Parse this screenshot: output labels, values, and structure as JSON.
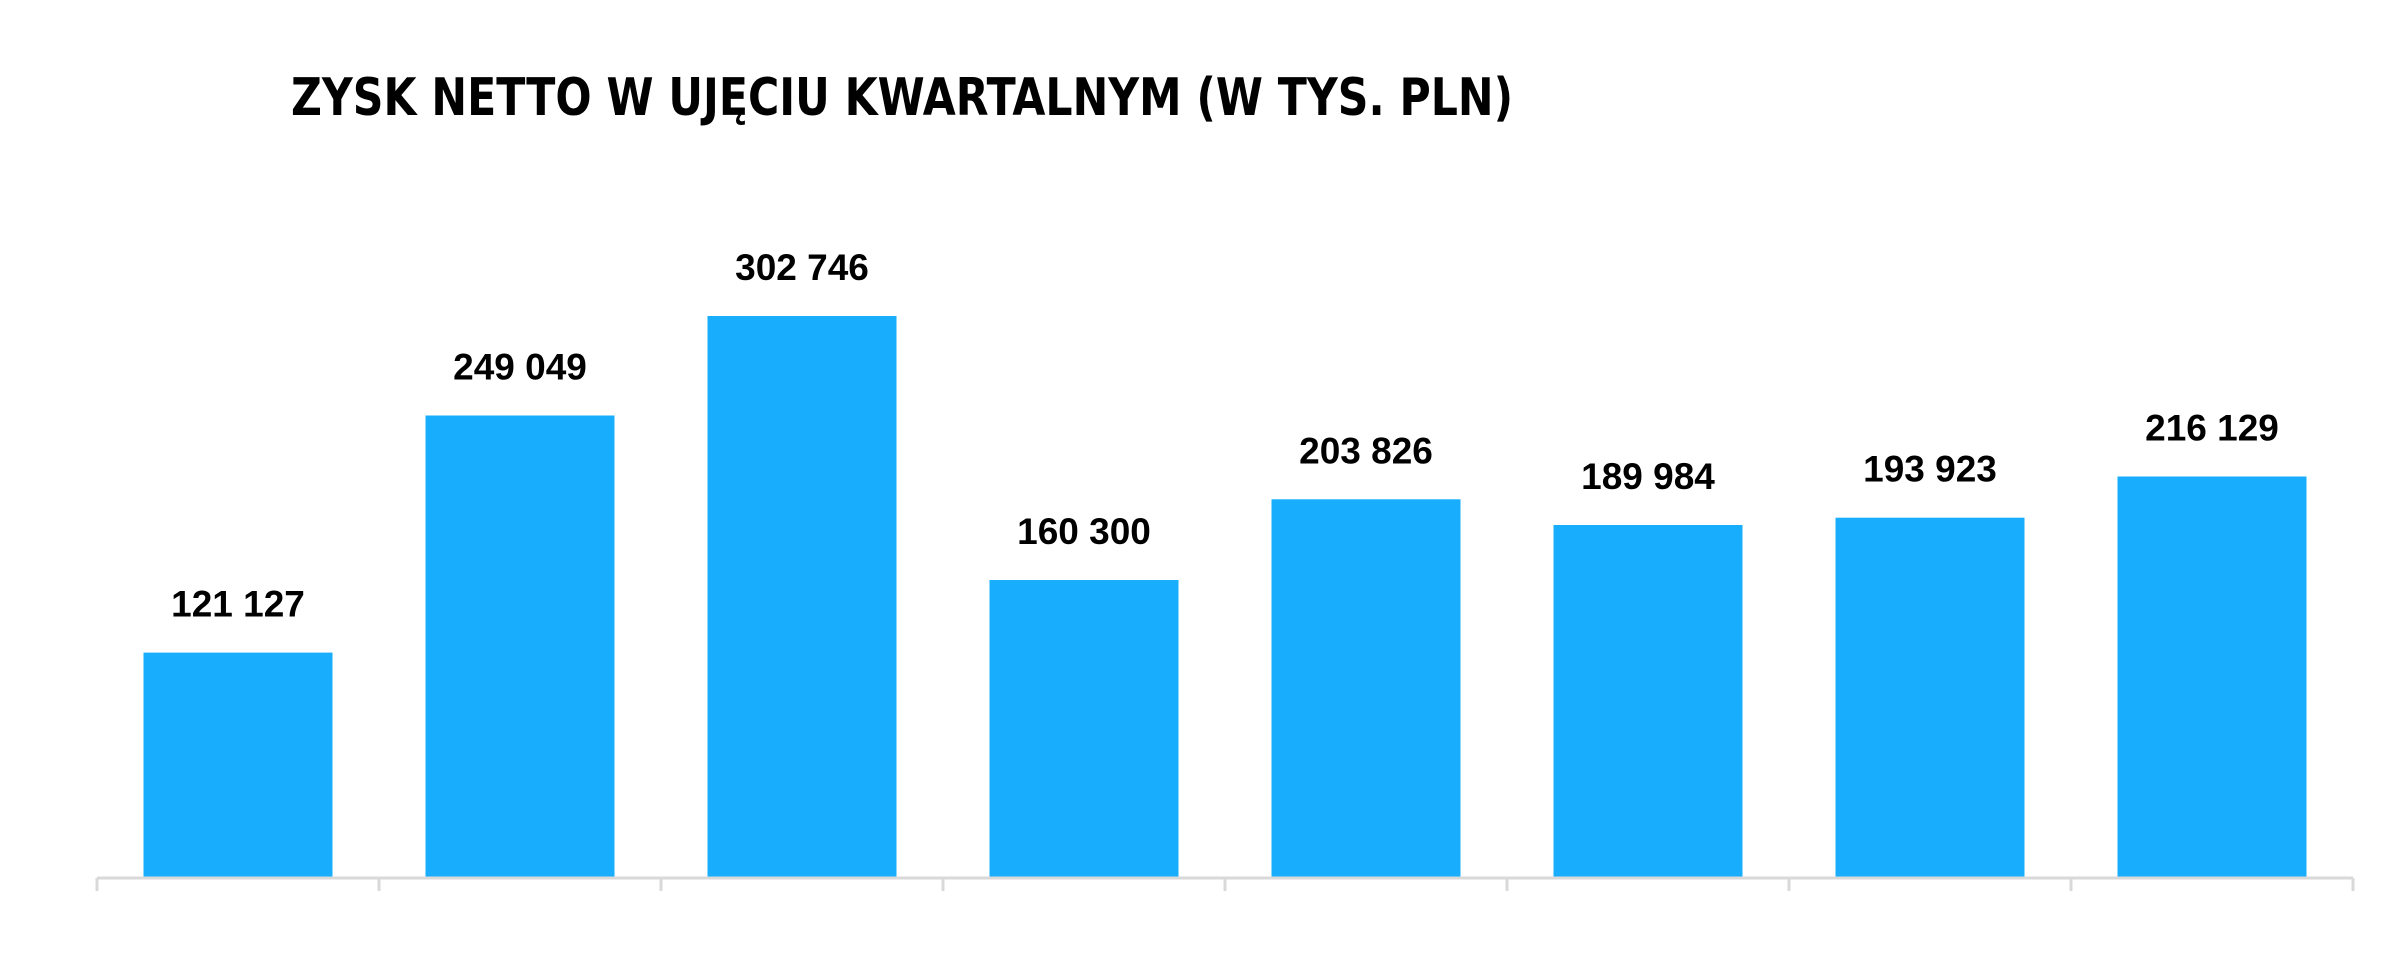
{
  "chart_data": {
    "type": "bar",
    "title": "ZYSK NETTO W UJĘCIU KWARTALNYM (W TYS. PLN)",
    "categories": [
      "",
      "",
      "",
      "",
      "",
      "",
      "",
      ""
    ],
    "values": [
      121127,
      249049,
      302746,
      160300,
      203826,
      189984,
      193923,
      216129
    ],
    "value_labels": [
      "121 127",
      "249 049",
      "302 746",
      "160 300",
      "203 826",
      "189 984",
      "193 923",
      "216 129"
    ],
    "xlabel": "",
    "ylabel": "",
    "ylim": [
      0,
      340000
    ],
    "grid": false,
    "legend": "none",
    "colors": {
      "bar": "#18ADFD",
      "axis": "#D9D9D9",
      "text": "#000000"
    }
  }
}
